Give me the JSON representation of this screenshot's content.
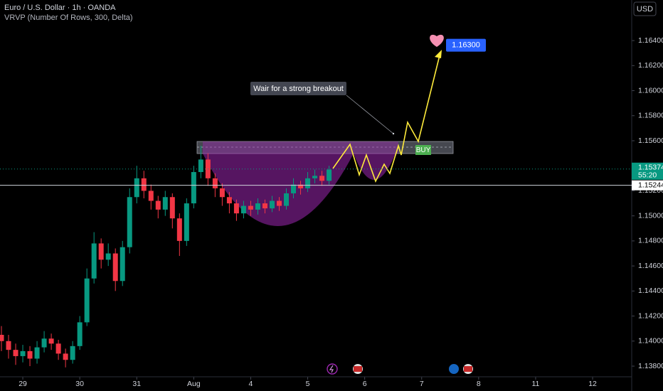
{
  "header": {
    "symbol": "Euro / U.S. Dollar · 1h · OANDA",
    "indicator": "VRVP (Number Of Rows, 300, Delta)",
    "currency": "USD"
  },
  "chart_data": {
    "type": "candlestick",
    "x": [
      -0.375,
      -0.25,
      -0.125,
      0,
      0.125,
      0.25,
      0.375,
      0.5,
      0.625,
      0.75,
      0.875,
      1,
      1.125,
      1.25,
      1.375,
      1.5,
      1.625,
      1.75,
      1.875,
      2,
      2.125,
      2.25,
      2.375,
      2.5,
      2.625,
      2.75,
      2.875,
      3,
      3.125,
      3.25,
      3.375,
      3.5,
      3.625,
      3.75,
      3.875,
      4,
      4.125,
      4.25,
      4.375,
      4.5,
      4.625,
      4.75,
      4.875,
      5,
      5.125,
      5.25,
      5.375
    ],
    "open": [
      1.1405,
      1.14,
      1.1393,
      1.1388,
      1.1392,
      1.1386,
      1.1395,
      1.1402,
      1.1398,
      1.139,
      1.1385,
      1.1396,
      1.1415,
      1.145,
      1.1478,
      1.1465,
      1.147,
      1.1448,
      1.1475,
      1.1515,
      1.153,
      1.152,
      1.1512,
      1.1505,
      1.1515,
      1.1498,
      1.148,
      1.151,
      1.1535,
      1.1545,
      1.153,
      1.1522,
      1.1515,
      1.151,
      1.1502,
      1.1508,
      1.1505,
      1.151,
      1.1506,
      1.1512,
      1.1508,
      1.1518,
      1.1525,
      1.1522,
      1.153,
      1.1532,
      1.1528
    ],
    "high": [
      1.1412,
      1.1405,
      1.1398,
      1.1397,
      1.1396,
      1.14,
      1.1408,
      1.1406,
      1.1401,
      1.1394,
      1.14,
      1.142,
      1.1458,
      1.1487,
      1.1482,
      1.1478,
      1.1474,
      1.148,
      1.1522,
      1.154,
      1.1536,
      1.1525,
      1.1516,
      1.152,
      1.1518,
      1.1502,
      1.1514,
      1.154,
      1.1556,
      1.155,
      1.1534,
      1.1526,
      1.1519,
      1.1513,
      1.1512,
      1.1512,
      1.1514,
      1.1513,
      1.1516,
      1.1515,
      1.1522,
      1.153,
      1.1528,
      1.1535,
      1.1537,
      1.1536,
      1.154
    ],
    "low": [
      1.1392,
      1.1386,
      1.1381,
      1.1383,
      1.138,
      1.1382,
      1.1391,
      1.1393,
      1.1385,
      1.1379,
      1.1382,
      1.1393,
      1.1412,
      1.1446,
      1.1458,
      1.146,
      1.144,
      1.1444,
      1.147,
      1.151,
      1.1514,
      1.1505,
      1.1498,
      1.15,
      1.149,
      1.1468,
      1.1476,
      1.1506,
      1.153,
      1.1524,
      1.1515,
      1.1508,
      1.1502,
      1.1496,
      1.1498,
      1.15,
      1.1501,
      1.1502,
      1.1503,
      1.1504,
      1.1505,
      1.1514,
      1.1517,
      1.1519,
      1.1526,
      1.1524,
      1.1525
    ],
    "close": [
      1.14,
      1.1393,
      1.1388,
      1.1392,
      1.1386,
      1.1395,
      1.1402,
      1.1398,
      1.139,
      1.1385,
      1.1396,
      1.1415,
      1.145,
      1.1478,
      1.1465,
      1.147,
      1.1448,
      1.1475,
      1.1515,
      1.153,
      1.152,
      1.1512,
      1.1505,
      1.1515,
      1.1498,
      1.148,
      1.151,
      1.1535,
      1.1545,
      1.153,
      1.1522,
      1.1515,
      1.151,
      1.1502,
      1.1508,
      1.1505,
      1.151,
      1.1506,
      1.1512,
      1.1508,
      1.1518,
      1.1525,
      1.1522,
      1.153,
      1.1532,
      1.1528,
      1.1537
    ],
    "up_color": "#089981",
    "down_color": "#f23645",
    "xlim": [
      -0.4,
      10.686
    ],
    "xticks": [
      {
        "value": 0,
        "label": "29"
      },
      {
        "value": 1,
        "label": "30"
      },
      {
        "value": 2,
        "label": "31"
      },
      {
        "value": 3,
        "label": "Aug"
      },
      {
        "value": 4,
        "label": "4"
      },
      {
        "value": 5,
        "label": "5"
      },
      {
        "value": 6,
        "label": "6"
      },
      {
        "value": 7,
        "label": "7"
      },
      {
        "value": 8,
        "label": "8"
      },
      {
        "value": 9,
        "label": "11"
      },
      {
        "value": 10,
        "label": "12"
      }
    ],
    "ylim": [
      1.13715,
      1.16724
    ],
    "yticks": [
      {
        "value": 1.138,
        "label": "1.13800"
      },
      {
        "value": 1.14,
        "label": "1.14000"
      },
      {
        "value": 1.142,
        "label": "1.14200"
      },
      {
        "value": 1.144,
        "label": "1.14400"
      },
      {
        "value": 1.146,
        "label": "1.14600"
      },
      {
        "value": 1.148,
        "label": "1.14800"
      },
      {
        "value": 1.15,
        "label": "1.15000"
      },
      {
        "value": 1.152,
        "label": "1.15200"
      },
      {
        "value": 1.154,
        "label": "1.15400"
      },
      {
        "value": 1.156,
        "label": "1.15600"
      },
      {
        "value": 1.158,
        "label": "1.15800"
      },
      {
        "value": 1.16,
        "label": "1.16000"
      },
      {
        "value": 1.162,
        "label": "1.16200"
      },
      {
        "value": 1.164,
        "label": "1.16400"
      }
    ],
    "last_price": {
      "value": 1.15374,
      "label": "1.15374"
    },
    "countdown": "55:20",
    "line_price": {
      "value": 1.15244,
      "label": "1.15244"
    },
    "target": {
      "value": 1.163,
      "label": "1.16300"
    },
    "annotation": "Wair for a strong breakout",
    "buy_label": "BUY"
  }
}
